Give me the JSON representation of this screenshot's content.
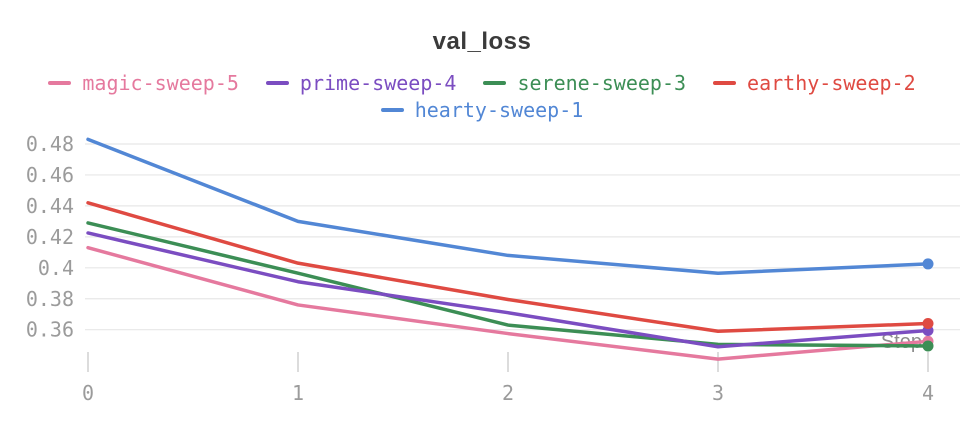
{
  "chart_data": {
    "type": "line",
    "title": "val_loss",
    "xlabel": "Step",
    "x": [
      0,
      1,
      2,
      3,
      4
    ],
    "x_tick_labels": [
      "0",
      "1",
      "2",
      "3",
      "4"
    ],
    "y_ticks": [
      0.48,
      0.46,
      0.44,
      0.42,
      0.4,
      0.38,
      0.36
    ],
    "ylim": [
      0.335,
      0.49
    ],
    "grid": "horizontal",
    "legend_position": "top",
    "end_markers": true,
    "series": [
      {
        "name": "magic-sweep-5",
        "color": "#e5799e",
        "values": [
          0.413,
          0.376,
          0.3575,
          0.341,
          0.3525
        ]
      },
      {
        "name": "prime-sweep-4",
        "color": "#7b4dc1",
        "values": [
          0.4225,
          0.391,
          0.371,
          0.349,
          0.3595
        ]
      },
      {
        "name": "serene-sweep-3",
        "color": "#3c8e55",
        "values": [
          0.429,
          0.3965,
          0.363,
          0.3505,
          0.3495
        ]
      },
      {
        "name": "earthy-sweep-2",
        "color": "#df4a42",
        "values": [
          0.442,
          0.403,
          0.3795,
          0.359,
          0.364
        ]
      },
      {
        "name": "hearty-sweep-1",
        "color": "#5287d5",
        "values": [
          0.483,
          0.43,
          0.408,
          0.3965,
          0.4025
        ]
      }
    ]
  },
  "legend": {
    "rows": [
      [
        "magic-sweep-5",
        "prime-sweep-4",
        "serene-sweep-3",
        "earthy-sweep-2"
      ],
      [
        "hearty-sweep-1"
      ]
    ]
  },
  "colors": {
    "title_text": "#3a3a3a",
    "gridline": "#e7e7e7",
    "tick_mark": "#dcdcdc",
    "tick_label": "#9b9b9b",
    "step_label": "#8d8d8d",
    "background": "#ffffff"
  }
}
